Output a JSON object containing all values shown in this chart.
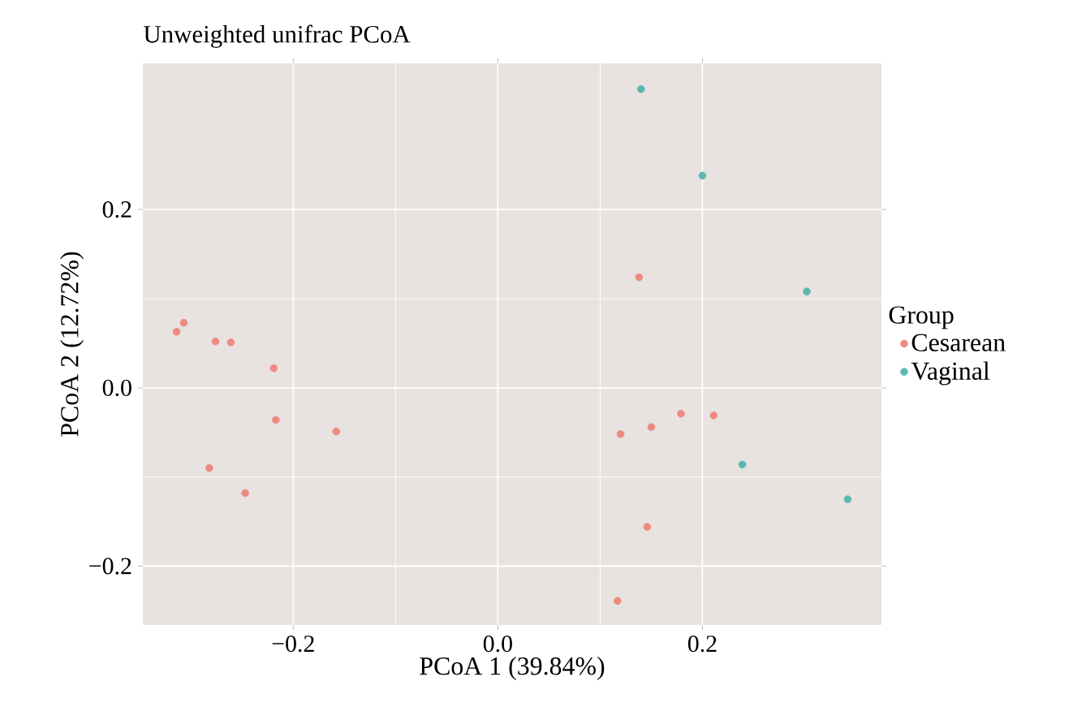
{
  "chart_data": {
    "type": "scatter",
    "title": "Unweighted unifrac PCoA",
    "xlabel": "PCoA 1 (39.84%)",
    "ylabel": "PCoA 2 (12.72%)",
    "legend_title": "Group",
    "xlim": [
      -0.347,
      0.375
    ],
    "ylim": [
      -0.266,
      0.364
    ],
    "xticks": [
      {
        "value": -0.2,
        "label": "−0.2"
      },
      {
        "value": 0.0,
        "label": "0.0"
      },
      {
        "value": 0.2,
        "label": "0.2"
      }
    ],
    "yticks": [
      {
        "value": -0.2,
        "label": "−0.2"
      },
      {
        "value": 0.0,
        "label": "0.0"
      },
      {
        "value": 0.2,
        "label": "0.2"
      }
    ],
    "grid": true,
    "legend": "right",
    "marker": "circle",
    "series": [
      {
        "name": "Cesarean",
        "color": "#ef8a80",
        "x": [
          -0.314,
          -0.307,
          -0.276,
          -0.261,
          -0.219,
          -0.217,
          -0.158,
          -0.282,
          -0.247,
          0.138,
          0.12,
          0.15,
          0.179,
          0.211,
          0.146,
          0.117
        ],
        "values": [
          0.063,
          0.073,
          0.052,
          0.051,
          0.022,
          -0.036,
          -0.049,
          -0.09,
          -0.118,
          0.124,
          -0.052,
          -0.044,
          -0.029,
          -0.031,
          -0.156,
          -0.239
        ]
      },
      {
        "name": "Vaginal",
        "color": "#5ab8b0",
        "x": [
          0.14,
          0.2,
          0.302,
          0.239,
          0.342
        ],
        "values": [
          0.335,
          0.238,
          0.108,
          -0.086,
          -0.125
        ]
      }
    ]
  }
}
